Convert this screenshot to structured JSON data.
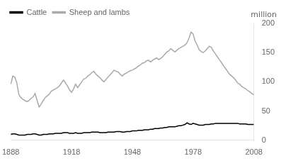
{
  "chart_data": {
    "type": "line",
    "title": "",
    "ylabel": "million",
    "x": [
      1888,
      1889,
      1890,
      1891,
      1892,
      1893,
      1894,
      1895,
      1896,
      1897,
      1898,
      1899,
      1900,
      1901,
      1902,
      1903,
      1904,
      1905,
      1906,
      1907,
      1908,
      1909,
      1910,
      1911,
      1912,
      1913,
      1914,
      1915,
      1916,
      1917,
      1918,
      1919,
      1920,
      1921,
      1922,
      1923,
      1924,
      1925,
      1926,
      1927,
      1928,
      1929,
      1930,
      1931,
      1932,
      1933,
      1934,
      1935,
      1936,
      1937,
      1938,
      1939,
      1940,
      1941,
      1942,
      1943,
      1944,
      1945,
      1946,
      1947,
      1948,
      1949,
      1950,
      1951,
      1952,
      1953,
      1954,
      1955,
      1956,
      1957,
      1958,
      1959,
      1960,
      1961,
      1962,
      1963,
      1964,
      1965,
      1966,
      1967,
      1968,
      1969,
      1970,
      1971,
      1972,
      1973,
      1974,
      1975,
      1976,
      1977,
      1978,
      1979,
      1980,
      1981,
      1982,
      1983,
      1984,
      1985,
      1986,
      1987,
      1988,
      1989,
      1990,
      1991,
      1992,
      1993,
      1994,
      1995,
      1996,
      1997,
      1998,
      1999,
      2000,
      2001,
      2002,
      2003,
      2004,
      2005,
      2006,
      2007,
      2008
    ],
    "series": [
      {
        "name": "Sheep and lambs",
        "color": "#aaaaaa",
        "values": [
          96,
          110,
          108,
          98,
          78,
          73,
          70,
          68,
          66,
          68,
          72,
          74,
          80,
          68,
          57,
          62,
          68,
          73,
          76,
          79,
          84,
          86,
          88,
          90,
          93,
          98,
          103,
          98,
          93,
          86,
          82,
          88,
          96,
          90,
          95,
          100,
          105,
          106,
          110,
          112,
          116,
          118,
          113,
          110,
          107,
          103,
          100,
          104,
          108,
          112,
          116,
          120,
          118,
          117,
          113,
          110,
          113,
          115,
          117,
          119,
          120,
          122,
          124,
          127,
          129,
          132,
          133,
          136,
          137,
          134,
          137,
          139,
          141,
          138,
          140,
          143,
          147,
          151,
          153,
          157,
          154,
          151,
          154,
          157,
          159,
          161,
          163,
          167,
          175,
          185,
          182,
          170,
          163,
          155,
          152,
          150,
          153,
          157,
          161,
          159,
          153,
          148,
          143,
          138,
          133,
          128,
          123,
          118,
          113,
          110,
          107,
          103,
          98,
          96,
          92,
          90,
          88,
          85,
          83,
          80,
          78
        ]
      },
      {
        "name": "Cattle",
        "color": "#000000",
        "values": [
          10,
          11,
          11,
          10,
          9,
          9,
          9,
          9,
          10,
          10,
          10,
          11,
          11,
          10,
          9,
          9,
          10,
          10,
          10,
          11,
          11,
          11,
          12,
          12,
          12,
          12,
          13,
          13,
          13,
          12,
          12,
          12,
          13,
          12,
          12,
          12,
          13,
          13,
          13,
          13,
          14,
          14,
          14,
          14,
          13,
          13,
          13,
          13,
          14,
          14,
          14,
          14,
          15,
          15,
          15,
          14,
          14,
          15,
          15,
          15,
          16,
          16,
          16,
          17,
          17,
          17,
          18,
          18,
          18,
          19,
          19,
          20,
          20,
          20,
          21,
          21,
          22,
          22,
          23,
          23,
          23,
          23,
          24,
          25,
          25,
          26,
          27,
          30,
          28,
          27,
          29,
          28,
          27,
          26,
          26,
          26,
          27,
          27,
          27,
          28,
          28,
          29,
          29,
          29,
          29,
          29,
          29,
          29,
          29,
          29,
          29,
          29,
          29,
          28,
          28,
          28,
          28,
          27,
          27,
          27,
          27
        ]
      }
    ],
    "xlim": [
      1888,
      2008
    ],
    "xticks": [
      1888,
      1918,
      1948,
      1978,
      2008
    ],
    "ylim": [
      0,
      200
    ],
    "yticks": [
      0,
      50,
      100,
      150,
      200
    ],
    "grid": false,
    "legend": "top-left"
  }
}
